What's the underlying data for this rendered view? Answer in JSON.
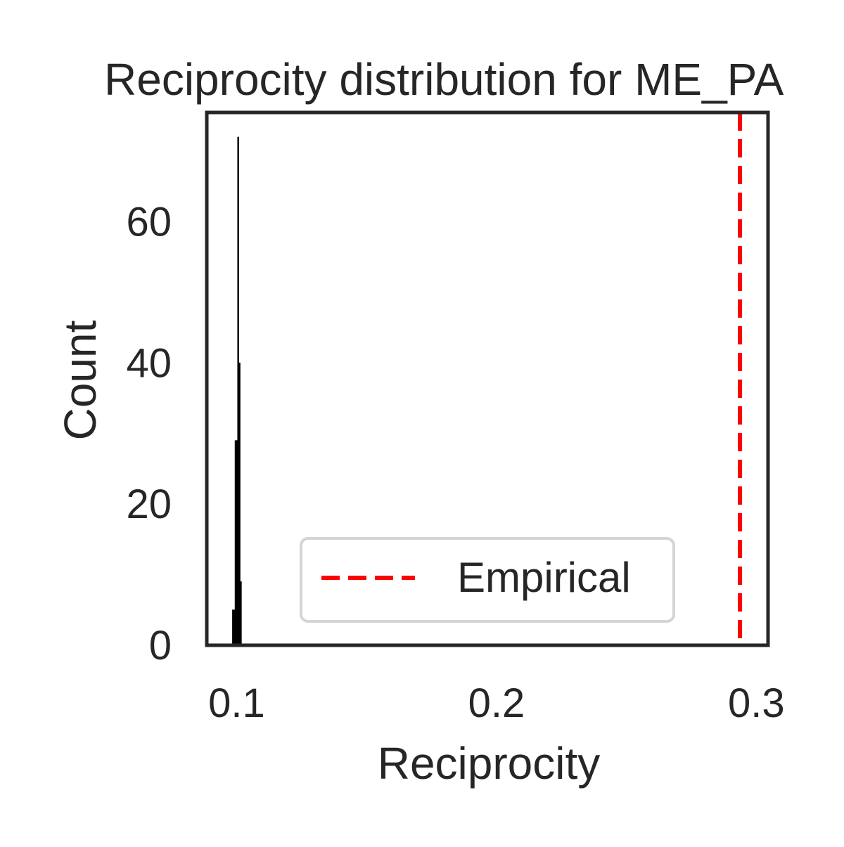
{
  "chart_data": {
    "type": "bar",
    "title": "Reciprocity distribution for ME_PA",
    "xlabel": "Reciprocity",
    "ylabel": "Count",
    "xlim": [
      0.0885,
      0.3045
    ],
    "ylim": [
      0,
      75.5
    ],
    "xticks": [
      {
        "value": 0.1,
        "label": "0.1"
      },
      {
        "value": 0.2,
        "label": "0.2"
      },
      {
        "value": 0.3,
        "label": "0.3"
      }
    ],
    "yticks": [
      {
        "value": 0,
        "label": "0"
      },
      {
        "value": 20,
        "label": "20"
      },
      {
        "value": 40,
        "label": "40"
      },
      {
        "value": 60,
        "label": "60"
      }
    ],
    "histogram": {
      "color": "#000000",
      "bins": [
        {
          "x0": 0.0984,
          "x1": 0.0994,
          "count": 5
        },
        {
          "x0": 0.0994,
          "x1": 0.1004,
          "count": 29
        },
        {
          "x0": 0.1004,
          "x1": 0.1008,
          "count": 72
        },
        {
          "x0": 0.1008,
          "x1": 0.1013,
          "count": 40
        },
        {
          "x0": 0.1013,
          "x1": 0.1018,
          "count": 9
        }
      ]
    },
    "reference_line": {
      "x": 0.2937,
      "label": "Empirical",
      "color": "#ff0000",
      "style": "dashed"
    },
    "grid": false,
    "legend": {
      "position": "lower-center",
      "entries": [
        "Empirical"
      ]
    }
  }
}
